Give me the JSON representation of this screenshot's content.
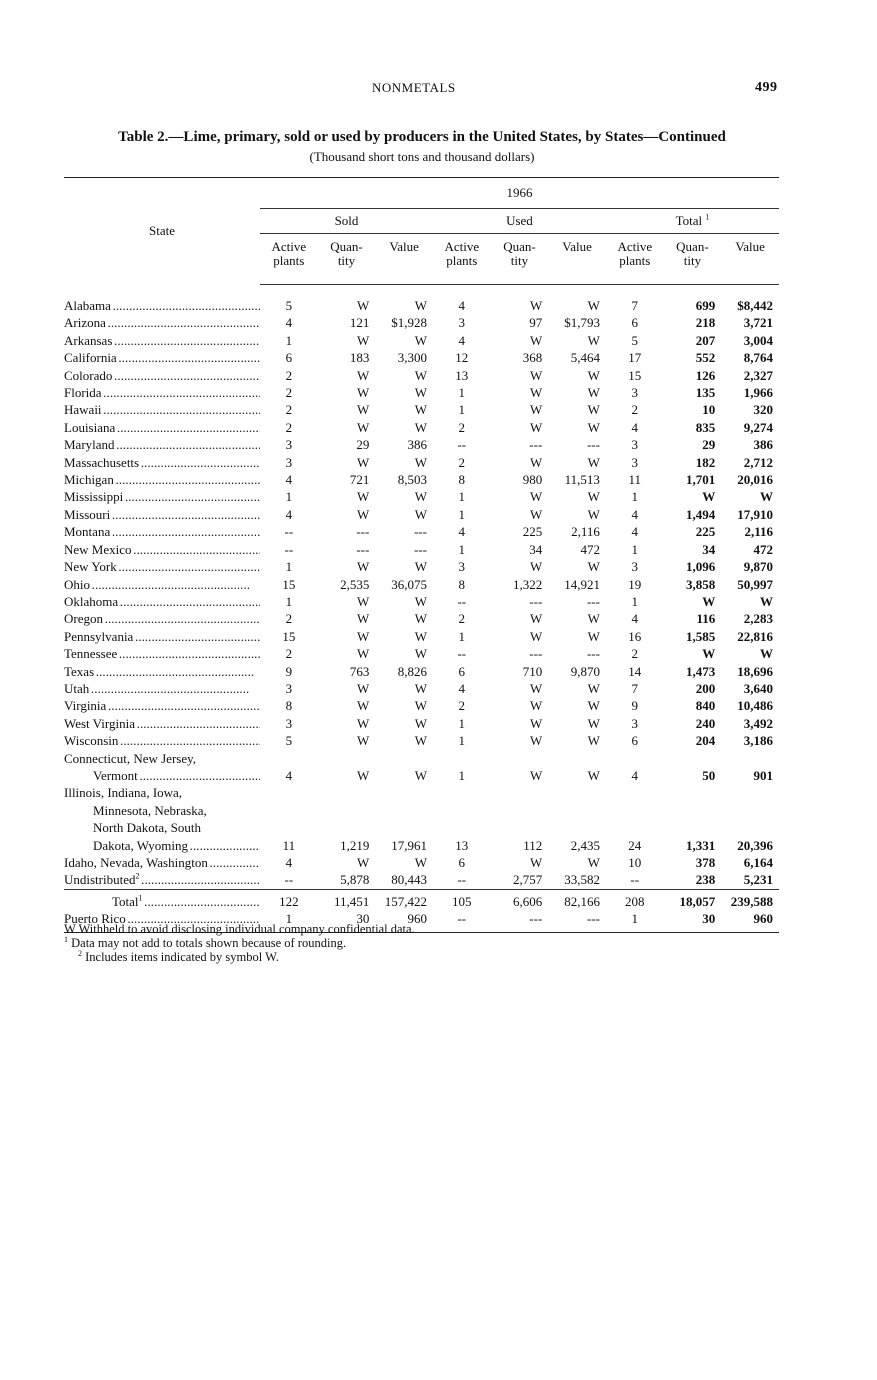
{
  "running_head": {
    "section": "NONMETALS",
    "page_number": "499"
  },
  "title": "Table 2.—Lime, primary, sold or used by producers in the United States, by States—Continued",
  "subtitle": "(Thousand short tons and thousand dollars)",
  "header": {
    "state": "State",
    "year": "1966",
    "groups": [
      "Sold",
      "Used",
      "Total"
    ],
    "total_footnote": "1",
    "subcolumns": [
      "Active plants",
      "Quan- tity",
      "Value",
      "Active plants",
      "Quan- tity",
      "Value",
      "Active plants",
      "Quan- tity",
      "Value"
    ]
  },
  "rows": [
    {
      "state": [
        "Alabama"
      ],
      "values": [
        "5",
        "W",
        "W",
        "4",
        "W",
        "W",
        "7",
        "699",
        "$8,442"
      ]
    },
    {
      "state": [
        "Arizona"
      ],
      "values": [
        "4",
        "121",
        "$1,928",
        "3",
        "97",
        "$1,793",
        "6",
        "218",
        "3,721"
      ]
    },
    {
      "state": [
        "Arkansas"
      ],
      "values": [
        "1",
        "W",
        "W",
        "4",
        "W",
        "W",
        "5",
        "207",
        "3,004"
      ]
    },
    {
      "state": [
        "California"
      ],
      "values": [
        "6",
        "183",
        "3,300",
        "12",
        "368",
        "5,464",
        "17",
        "552",
        "8,764"
      ]
    },
    {
      "state": [
        "Colorado"
      ],
      "values": [
        "2",
        "W",
        "W",
        "13",
        "W",
        "W",
        "15",
        "126",
        "2,327"
      ]
    },
    {
      "state": [
        "Florida"
      ],
      "values": [
        "2",
        "W",
        "W",
        "1",
        "W",
        "W",
        "3",
        "135",
        "1,966"
      ]
    },
    {
      "state": [
        "Hawaii"
      ],
      "values": [
        "2",
        "W",
        "W",
        "1",
        "W",
        "W",
        "2",
        "10",
        "320"
      ]
    },
    {
      "state": [
        "Louisiana"
      ],
      "values": [
        "2",
        "W",
        "W",
        "2",
        "W",
        "W",
        "4",
        "835",
        "9,274"
      ]
    },
    {
      "state": [
        "Maryland"
      ],
      "values": [
        "3",
        "29",
        "386",
        "--",
        "---",
        "---",
        "3",
        "29",
        "386"
      ]
    },
    {
      "state": [
        "Massachusetts"
      ],
      "values": [
        "3",
        "W",
        "W",
        "2",
        "W",
        "W",
        "3",
        "182",
        "2,712"
      ]
    },
    {
      "state": [
        "Michigan"
      ],
      "values": [
        "4",
        "721",
        "8,503",
        "8",
        "980",
        "11,513",
        "11",
        "1,701",
        "20,016"
      ]
    },
    {
      "state": [
        "Mississippi"
      ],
      "values": [
        "1",
        "W",
        "W",
        "1",
        "W",
        "W",
        "1",
        "W",
        "W"
      ]
    },
    {
      "state": [
        "Missouri"
      ],
      "values": [
        "4",
        "W",
        "W",
        "1",
        "W",
        "W",
        "4",
        "1,494",
        "17,910"
      ]
    },
    {
      "state": [
        "Montana"
      ],
      "values": [
        "--",
        "---",
        "---",
        "4",
        "225",
        "2,116",
        "4",
        "225",
        "2,116"
      ]
    },
    {
      "state": [
        "New Mexico"
      ],
      "values": [
        "--",
        "---",
        "---",
        "1",
        "34",
        "472",
        "1",
        "34",
        "472"
      ]
    },
    {
      "state": [
        "New York"
      ],
      "values": [
        "1",
        "W",
        "W",
        "3",
        "W",
        "W",
        "3",
        "1,096",
        "9,870"
      ]
    },
    {
      "state": [
        "Ohio"
      ],
      "values": [
        "15",
        "2,535",
        "36,075",
        "8",
        "1,322",
        "14,921",
        "19",
        "3,858",
        "50,997"
      ]
    },
    {
      "state": [
        "Oklahoma"
      ],
      "values": [
        "1",
        "W",
        "W",
        "--",
        "---",
        "---",
        "1",
        "W",
        "W"
      ]
    },
    {
      "state": [
        "Oregon"
      ],
      "values": [
        "2",
        "W",
        "W",
        "2",
        "W",
        "W",
        "4",
        "116",
        "2,283"
      ]
    },
    {
      "state": [
        "Pennsylvania"
      ],
      "values": [
        "15",
        "W",
        "W",
        "1",
        "W",
        "W",
        "16",
        "1,585",
        "22,816"
      ]
    },
    {
      "state": [
        "Tennessee"
      ],
      "values": [
        "2",
        "W",
        "W",
        "--",
        "---",
        "---",
        "2",
        "W",
        "W"
      ]
    },
    {
      "state": [
        "Texas"
      ],
      "values": [
        "9",
        "763",
        "8,826",
        "6",
        "710",
        "9,870",
        "14",
        "1,473",
        "18,696"
      ]
    },
    {
      "state": [
        "Utah"
      ],
      "values": [
        "3",
        "W",
        "W",
        "4",
        "W",
        "W",
        "7",
        "200",
        "3,640"
      ]
    },
    {
      "state": [
        "Virginia"
      ],
      "values": [
        "8",
        "W",
        "W",
        "2",
        "W",
        "W",
        "9",
        "840",
        "10,486"
      ]
    },
    {
      "state": [
        "West Virginia"
      ],
      "values": [
        "3",
        "W",
        "W",
        "1",
        "W",
        "W",
        "3",
        "240",
        "3,492"
      ]
    },
    {
      "state": [
        "Wisconsin"
      ],
      "values": [
        "5",
        "W",
        "W",
        "1",
        "W",
        "W",
        "6",
        "204",
        "3,186"
      ]
    },
    {
      "state": [
        "Connecticut, New Jersey,",
        "Vermont"
      ],
      "values": [
        "4",
        "W",
        "W",
        "1",
        "W",
        "W",
        "4",
        "50",
        "901"
      ]
    },
    {
      "state": [
        "Illinois, Indiana, Iowa,",
        "Minnesota, Nebraska,",
        "North Dakota, South",
        "Dakota, Wyoming"
      ],
      "values": [
        "11",
        "1,219",
        "17,961",
        "13",
        "112",
        "2,435",
        "24",
        "1,331",
        "20,396"
      ]
    },
    {
      "state": [
        "Idaho, Nevada, Washington"
      ],
      "values": [
        "4",
        "W",
        "W",
        "6",
        "W",
        "W",
        "10",
        "378",
        "6,164"
      ]
    },
    {
      "state": [
        "Undistributed"
      ],
      "footnote": "2",
      "values": [
        "--",
        "5,878",
        "80,443",
        "--",
        "2,757",
        "33,582",
        "--",
        "238",
        "5,231"
      ]
    }
  ],
  "total_row": {
    "state": [
      "Total"
    ],
    "footnote": "1",
    "values": [
      "122",
      "11,451",
      "157,422",
      "105",
      "6,606",
      "82,166",
      "208",
      "18,057",
      "239,588"
    ]
  },
  "puerto_rico_row": {
    "state": [
      "Puerto Rico"
    ],
    "values": [
      "1",
      "30",
      "960",
      "--",
      "---",
      "---",
      "1",
      "30",
      "960"
    ]
  },
  "footnotes": [
    "W Withheld to avoid disclosing individual company confidential data.",
    "Data may not add to totals shown because of rounding.",
    "Includes items indicated by symbol W."
  ],
  "footnote_marks": [
    "",
    "1",
    "2"
  ]
}
